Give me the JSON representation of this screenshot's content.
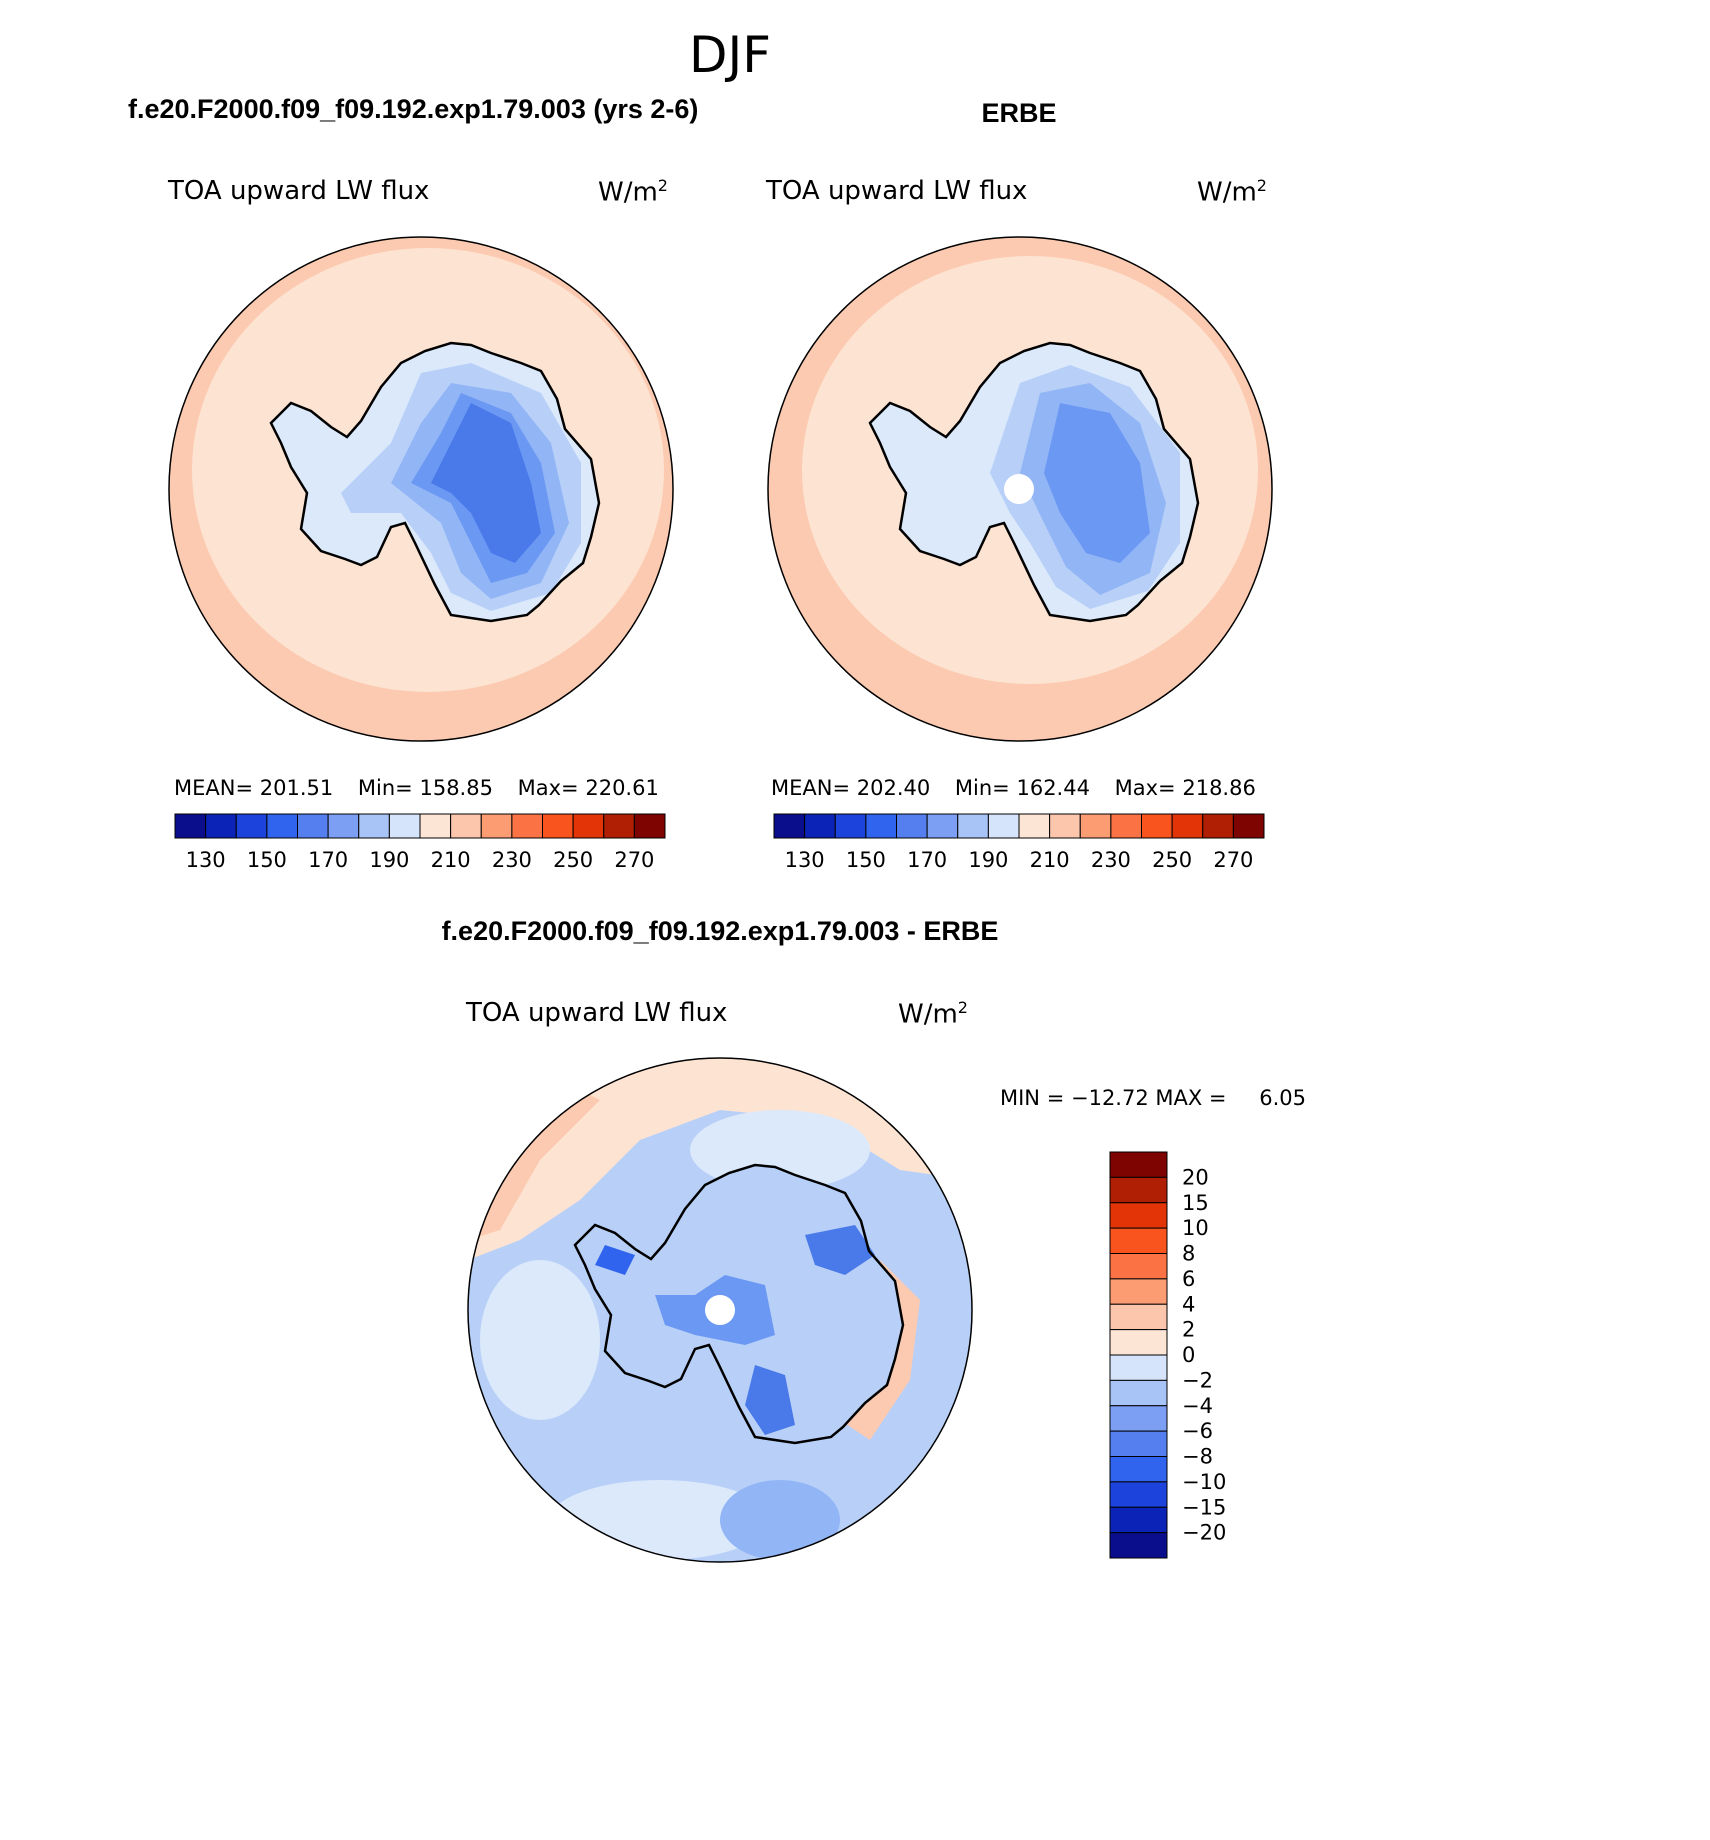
{
  "page": {
    "title": "DJF",
    "colors": {
      "ocean_pos_1": "#fde3d2",
      "ocean_pos_2": "#fccab0",
      "land_1": "#dbe9fb",
      "land_2": "#b8d0f8",
      "land_3": "#92b5f6",
      "land_4": "#6b98f2",
      "land_5": "#4a7ae9",
      "coast": "#000000"
    }
  },
  "chart_data": [
    {
      "type": "heatmap",
      "projection": "south-polar-stereographic",
      "title": "f.e20.F2000.f09_f09.192.exp1.79.003 (yrs 2-6)",
      "variable": "TOA upward LW flux",
      "units": "W/m",
      "units_sup": "2",
      "stats": {
        "mean_label": "MEAN=",
        "mean": "201.51",
        "min_label": "Min=",
        "min": "158.85",
        "max_label": "Max=",
        "max": "220.61"
      },
      "colorbar": {
        "orientation": "horizontal",
        "levels": [
          130,
          140,
          150,
          160,
          170,
          180,
          190,
          200,
          210,
          220,
          230,
          240,
          250,
          260,
          270
        ],
        "tick_labels": [
          "130",
          "150",
          "170",
          "190",
          "210",
          "230",
          "250",
          "270"
        ],
        "colors": [
          "#0a0e8c",
          "#0c23b8",
          "#1c44dc",
          "#3064ee",
          "#557fef",
          "#7d9ff3",
          "#a8c3f6",
          "#d5e4fa",
          "#fde5d5",
          "#fbc6ac",
          "#fb9c73",
          "#fb7345",
          "#f9531e",
          "#e23407",
          "#b01e04",
          "#7d0401"
        ]
      }
    },
    {
      "type": "heatmap",
      "projection": "south-polar-stereographic",
      "title": "ERBE",
      "variable": "TOA upward LW flux",
      "units": "W/m",
      "units_sup": "2",
      "stats": {
        "mean_label": "MEAN=",
        "mean": "202.40",
        "min_label": "Min=",
        "min": "162.44",
        "max_label": "Max=",
        "max": "218.86"
      },
      "colorbar": {
        "orientation": "horizontal",
        "levels": [
          130,
          140,
          150,
          160,
          170,
          180,
          190,
          200,
          210,
          220,
          230,
          240,
          250,
          260,
          270
        ],
        "tick_labels": [
          "130",
          "150",
          "170",
          "190",
          "210",
          "230",
          "250",
          "270"
        ],
        "colors": [
          "#0a0e8c",
          "#0c23b8",
          "#1c44dc",
          "#3064ee",
          "#557fef",
          "#7d9ff3",
          "#a8c3f6",
          "#d5e4fa",
          "#fde5d5",
          "#fbc6ac",
          "#fb9c73",
          "#fb7345",
          "#f9531e",
          "#e23407",
          "#b01e04",
          "#7d0401"
        ]
      }
    },
    {
      "type": "heatmap",
      "projection": "south-polar-stereographic",
      "title": "f.e20.F2000.f09_f09.192.exp1.79.003 - ERBE",
      "variable": "TOA upward LW flux",
      "units": "W/m",
      "units_sup": "2",
      "stats": {
        "min_label": "MIN =",
        "min": "−12.72",
        "max_label": "MAX =",
        "max": "6.05"
      },
      "colorbar": {
        "orientation": "vertical",
        "levels": [
          20,
          15,
          10,
          8,
          6,
          4,
          2,
          0,
          -2,
          -4,
          -6,
          -8,
          -10,
          -15,
          -20
        ],
        "tick_labels": [
          "20",
          "15",
          "10",
          "8",
          "6",
          "4",
          "2",
          "0",
          "−2",
          "−4",
          "−6",
          "−8",
          "−10",
          "−15",
          "−20"
        ],
        "colors": [
          "#7d0401",
          "#b01e04",
          "#e23407",
          "#f9531e",
          "#fb7345",
          "#fb9c73",
          "#fbc6ac",
          "#fde5d5",
          "#d5e4fa",
          "#a8c3f6",
          "#7d9ff3",
          "#557fef",
          "#3064ee",
          "#1c44dc",
          "#0c23b8",
          "#0a0e8c"
        ]
      }
    }
  ]
}
